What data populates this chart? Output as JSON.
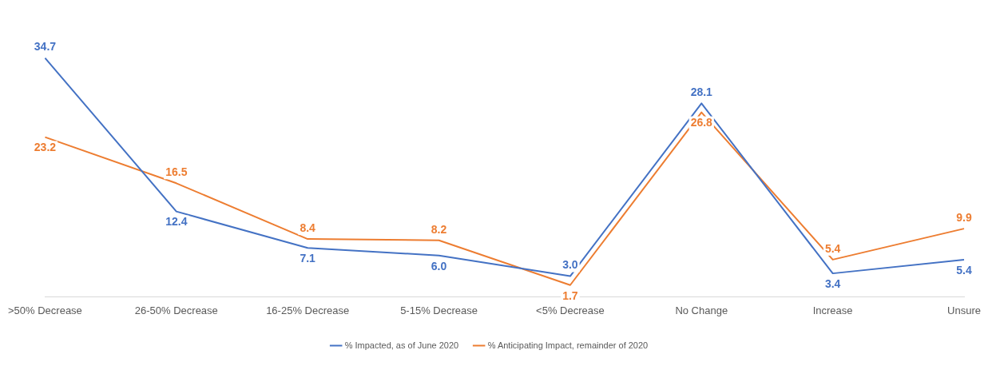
{
  "chart_data": {
    "type": "line",
    "categories": [
      ">50% Decrease",
      "26-50% Decrease",
      "16-25% Decrease",
      "5-15% Decrease",
      "<5% Decrease",
      "No Change",
      "Increase",
      "Unsure"
    ],
    "series": [
      {
        "name": "% Impacted, as of June 2020",
        "color": "#4472c4",
        "values": [
          34.7,
          12.4,
          7.1,
          6.0,
          3.0,
          28.1,
          3.4,
          5.4
        ],
        "value_labels": [
          "34.7",
          "12.4",
          "7.1",
          "6.0",
          "3.0",
          "28.1",
          "3.4",
          "5.4"
        ]
      },
      {
        "name": "% Anticipating Impact, remainder of 2020",
        "color": "#ed7d31",
        "values": [
          23.2,
          16.5,
          8.4,
          8.2,
          1.7,
          26.8,
          5.4,
          9.9
        ],
        "value_labels": [
          "23.2",
          "16.5",
          "8.4",
          "8.2",
          "1.7",
          "26.8",
          "5.4",
          "9.9"
        ]
      }
    ],
    "grid": false,
    "legend": "bottom",
    "marker": "none",
    "line_style": "solid"
  }
}
